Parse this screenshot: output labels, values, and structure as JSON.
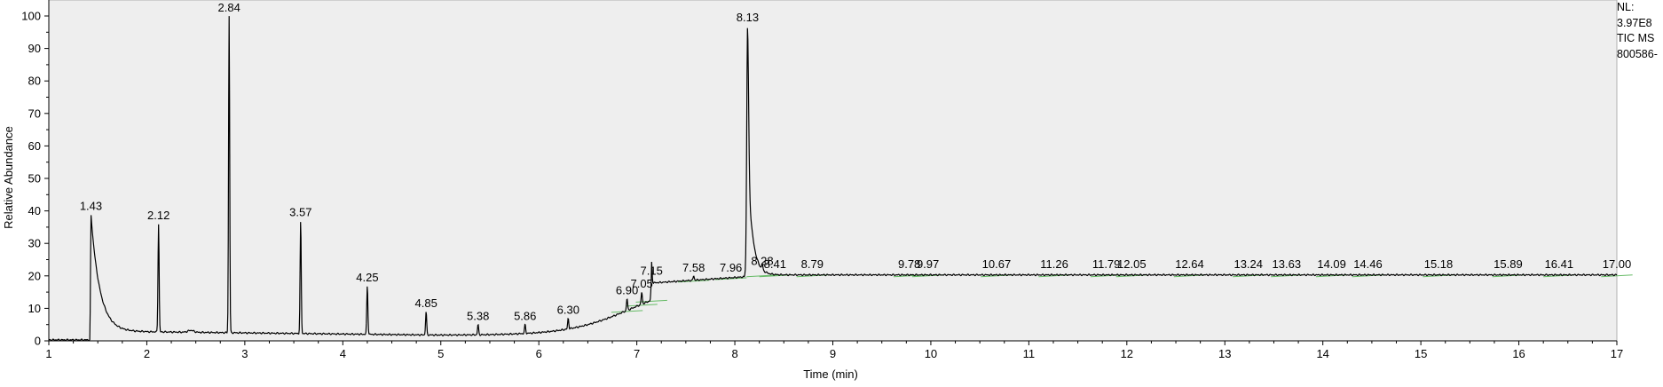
{
  "info": {
    "nl_label": "NL:",
    "nl_value": "3.97E8",
    "trace": "TIC  MS",
    "sample": "800586-"
  },
  "colors": {
    "plot_background": "#eeeeee",
    "trace": "#000000",
    "baseline_marker": "#66bb66"
  },
  "chart_data": {
    "type": "line",
    "title": "",
    "xlabel": "Time (min)",
    "ylabel": "Relative Abundance",
    "xlim": [
      1,
      17
    ],
    "ylim": [
      0,
      100
    ],
    "x_ticks": [
      1,
      2,
      3,
      4,
      5,
      6,
      7,
      8,
      9,
      10,
      11,
      12,
      13,
      14,
      15,
      16,
      17
    ],
    "y_ticks": [
      0,
      10,
      20,
      30,
      40,
      50,
      60,
      70,
      80,
      90,
      100
    ],
    "grid": false,
    "peaks": [
      {
        "label": "1.43",
        "rt": 1.43,
        "height": 39
      },
      {
        "label": "2.12",
        "rt": 2.12,
        "height": 36
      },
      {
        "label": "2.84",
        "rt": 2.84,
        "height": 100
      },
      {
        "label": "3.57",
        "rt": 3.57,
        "height": 37
      },
      {
        "label": "4.25",
        "rt": 4.25,
        "height": 17
      },
      {
        "label": "4.85",
        "rt": 4.85,
        "height": 9
      },
      {
        "label": "5.38",
        "rt": 5.38,
        "height": 5
      },
      {
        "label": "5.86",
        "rt": 5.86,
        "height": 5
      },
      {
        "label": "6.30",
        "rt": 6.3,
        "height": 7
      },
      {
        "label": "6.90",
        "rt": 6.9,
        "height": 13
      },
      {
        "label": "7.05",
        "rt": 7.05,
        "height": 15
      },
      {
        "label": "7.15",
        "rt": 7.15,
        "height": 19
      },
      {
        "label": "7.58",
        "rt": 7.58,
        "height": 20
      },
      {
        "label": "7.96",
        "rt": 7.96,
        "height": 20
      },
      {
        "label": "8.13",
        "rt": 8.13,
        "height": 97
      },
      {
        "label": "8.28",
        "rt": 8.28,
        "height": 22
      },
      {
        "label": "8.41",
        "rt": 8.41,
        "height": 21
      },
      {
        "label": "8.79",
        "rt": 8.79,
        "height": 21
      },
      {
        "label": "9.78",
        "rt": 9.78,
        "height": 21
      },
      {
        "label": "9.97",
        "rt": 9.97,
        "height": 21
      },
      {
        "label": "10.67",
        "rt": 10.67,
        "height": 21
      },
      {
        "label": "11.26",
        "rt": 11.26,
        "height": 21
      },
      {
        "label": "11.79",
        "rt": 11.79,
        "height": 21
      },
      {
        "label": "12.05",
        "rt": 12.05,
        "height": 21
      },
      {
        "label": "12.64",
        "rt": 12.64,
        "height": 21
      },
      {
        "label": "13.24",
        "rt": 13.24,
        "height": 21
      },
      {
        "label": "13.63",
        "rt": 13.63,
        "height": 21
      },
      {
        "label": "14.09",
        "rt": 14.09,
        "height": 21
      },
      {
        "label": "14.46",
        "rt": 14.46,
        "height": 21
      },
      {
        "label": "15.18",
        "rt": 15.18,
        "height": 21
      },
      {
        "label": "15.89",
        "rt": 15.89,
        "height": 21
      },
      {
        "label": "16.41",
        "rt": 16.41,
        "height": 21
      },
      {
        "label": "17.00",
        "rt": 17.0,
        "height": 21
      }
    ]
  }
}
